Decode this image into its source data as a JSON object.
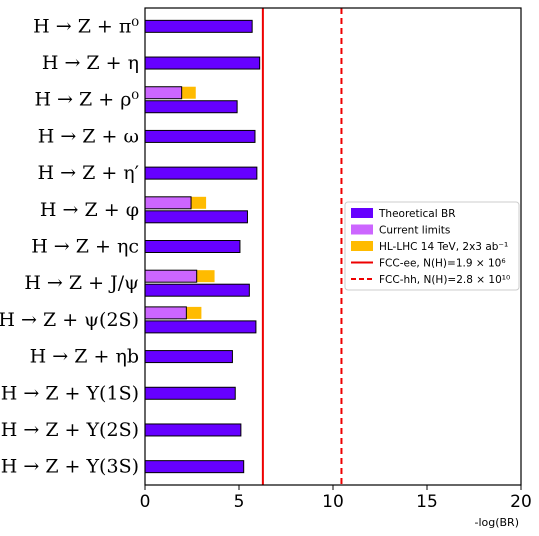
{
  "chart_data": {
    "type": "bar",
    "orientation": "horizontal",
    "xlabel": "-log(BR)",
    "xlim": [
      0,
      20
    ],
    "xticks": [
      0,
      5,
      10,
      15,
      20
    ],
    "categories": [
      "H → Z + π⁰",
      "H → Z + η",
      "H → Z + ρ⁰",
      "H → Z + ω",
      "H → Z + η′",
      "H → Z + φ",
      "H → Z + ηc",
      "H → Z + J/ψ",
      "H → Z + ψ(2S)",
      "H → Z + ηb",
      "H → Z + Υ(1S)",
      "H → Z + Υ(2S)",
      "H → Z + Υ(3S)"
    ],
    "series": [
      {
        "name": "Theoretical BR",
        "color": "#6600ff",
        "values": [
          5.7,
          6.1,
          4.9,
          5.85,
          5.95,
          5.45,
          5.05,
          5.55,
          5.9,
          4.65,
          4.8,
          5.1,
          5.25
        ]
      },
      {
        "name": "Current limits",
        "color": "#cc66ff",
        "values": [
          null,
          null,
          1.95,
          null,
          null,
          2.45,
          null,
          2.75,
          2.2,
          null,
          null,
          null,
          null
        ]
      },
      {
        "name": "HL-LHC 14 TeV, 2x3 ab⁻¹",
        "color": "#ffbb00",
        "values": [
          null,
          null,
          2.7,
          null,
          null,
          3.25,
          null,
          3.7,
          3.0,
          null,
          null,
          null,
          null
        ]
      }
    ],
    "reference_lines": [
      {
        "name": "FCC-ee, N(H)=1.9 × 10⁶",
        "value": 6.27,
        "color": "#ee0000",
        "style": "solid"
      },
      {
        "name": "FCC-hh, N(H)=2.8 × 10¹⁰",
        "value": 10.45,
        "color": "#ee0000",
        "style": "dashed"
      }
    ],
    "legend": {
      "placement": "right-middle"
    },
    "grid": false
  }
}
